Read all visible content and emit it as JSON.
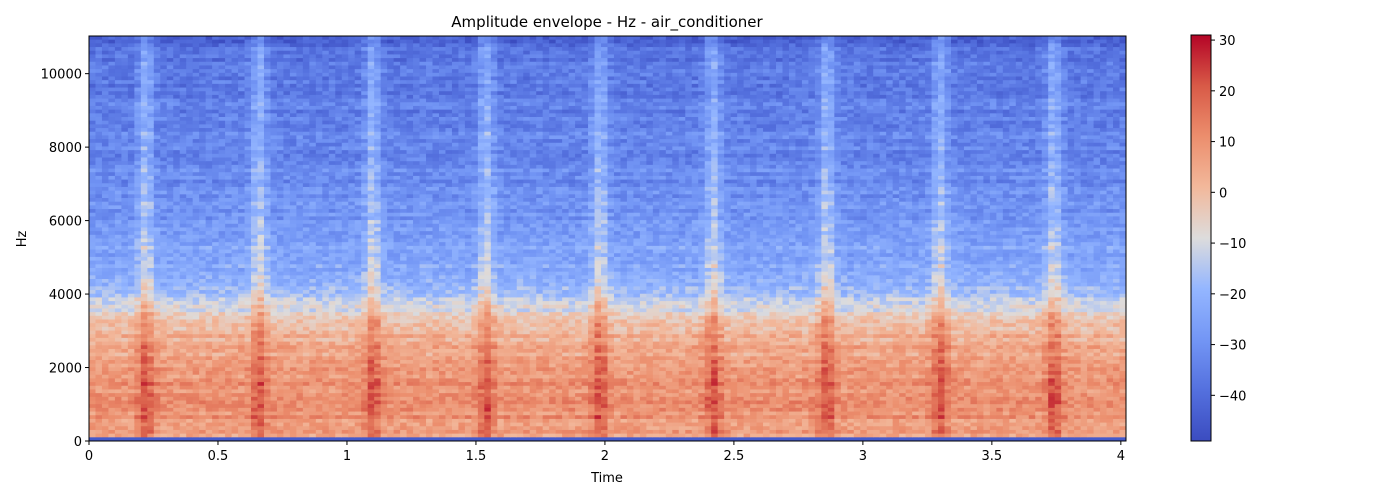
{
  "chart_data": {
    "type": "heatmap",
    "title": "Amplitude envelope - Hz - air_conditioner",
    "xlabel": "Time",
    "ylabel": "Hz",
    "xlim": [
      0,
      4.02
    ],
    "ylim": [
      0,
      11025
    ],
    "x_ticks": [
      0,
      0.5,
      1,
      1.5,
      2,
      2.5,
      3,
      3.5,
      4
    ],
    "x_tick_labels": [
      "0",
      "0.5",
      "1",
      "1.5",
      "2",
      "2.5",
      "3",
      "3.5",
      "4"
    ],
    "y_ticks": [
      0,
      2000,
      4000,
      6000,
      8000,
      10000
    ],
    "y_tick_labels": [
      "0",
      "2000",
      "4000",
      "6000",
      "8000",
      "10000"
    ],
    "colorbar": {
      "colormap": "coolwarm",
      "vmin": -49,
      "vmax": 31,
      "ticks": [
        30,
        20,
        10,
        0,
        -10,
        -20,
        -30,
        -40
      ],
      "tick_labels": [
        "30",
        "20",
        "10",
        "0",
        "−10",
        "−20",
        "−30",
        "−40"
      ]
    },
    "pulse_times": [
      0.22,
      0.66,
      1.1,
      1.54,
      1.98,
      2.42,
      2.86,
      3.3,
      3.74
    ],
    "level_profile_db": [
      {
        "hz": 0,
        "db": 5
      },
      {
        "hz": 800,
        "db": 10
      },
      {
        "hz": 1500,
        "db": 9
      },
      {
        "hz": 2500,
        "db": 5
      },
      {
        "hz": 3300,
        "db": -2
      },
      {
        "hz": 4000,
        "db": -18
      },
      {
        "hz": 5500,
        "db": -26
      },
      {
        "hz": 7000,
        "db": -32
      },
      {
        "hz": 9000,
        "db": -35
      },
      {
        "hz": 10500,
        "db": -38
      },
      {
        "hz": 11025,
        "db": -45
      }
    ]
  }
}
